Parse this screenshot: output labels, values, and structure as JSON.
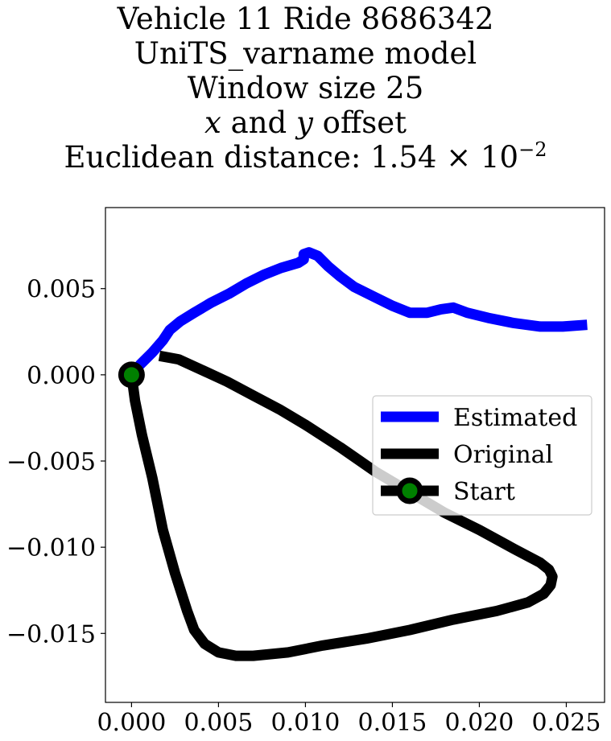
{
  "chart_data": {
    "type": "line",
    "title_lines": {
      "line1": "Vehicle 11 Ride 8686342",
      "line2": "UniTS_varname model",
      "line3": "Window size 25",
      "line4_var1": "x",
      "line4_mid": " and ",
      "line4_var2": "y",
      "line4_end": " offset",
      "line5_prefix": "Euclidean distance: 1.54 × 10",
      "line5_exponent": "−2"
    },
    "xlim": [
      -0.0015,
      0.0272
    ],
    "ylim": [
      -0.019,
      0.0097
    ],
    "x_ticks": [
      {
        "value": 0.0,
        "label": "0.000"
      },
      {
        "value": 0.005,
        "label": "0.005"
      },
      {
        "value": 0.01,
        "label": "0.010"
      },
      {
        "value": 0.015,
        "label": "0.015"
      },
      {
        "value": 0.02,
        "label": "0.020"
      },
      {
        "value": 0.025,
        "label": "0.025"
      }
    ],
    "y_ticks": [
      {
        "value": 0.005,
        "label": "0.005"
      },
      {
        "value": 0.0,
        "label": "0.000"
      },
      {
        "value": -0.005,
        "label": "−0.005"
      },
      {
        "value": -0.01,
        "label": "−0.010"
      },
      {
        "value": -0.015,
        "label": "−0.015"
      }
    ],
    "grid": false,
    "legend_position": "center-right",
    "series": [
      {
        "name": "Estimated",
        "color": "#0000ff",
        "points": [
          [
            0.0,
            0.0
          ],
          [
            0.0005,
            0.0006
          ],
          [
            0.0012,
            0.0013
          ],
          [
            0.0018,
            0.002
          ],
          [
            0.0022,
            0.0026
          ],
          [
            0.0028,
            0.0031
          ],
          [
            0.0036,
            0.0036
          ],
          [
            0.0046,
            0.0042
          ],
          [
            0.0056,
            0.0047
          ],
          [
            0.0066,
            0.0053
          ],
          [
            0.0076,
            0.0058
          ],
          [
            0.0086,
            0.0062
          ],
          [
            0.0096,
            0.0065
          ],
          [
            0.0099,
            0.0067
          ],
          [
            0.0099,
            0.007
          ],
          [
            0.0102,
            0.0071
          ],
          [
            0.0107,
            0.0069
          ],
          [
            0.0113,
            0.0063
          ],
          [
            0.012,
            0.0057
          ],
          [
            0.0128,
            0.0051
          ],
          [
            0.014,
            0.0045
          ],
          [
            0.015,
            0.004
          ],
          [
            0.016,
            0.0036
          ],
          [
            0.017,
            0.0036
          ],
          [
            0.0178,
            0.0038
          ],
          [
            0.0185,
            0.0039
          ],
          [
            0.0193,
            0.0036
          ],
          [
            0.0205,
            0.0033
          ],
          [
            0.022,
            0.003
          ],
          [
            0.0235,
            0.0028
          ],
          [
            0.0248,
            0.0028
          ],
          [
            0.0262,
            0.0029
          ]
        ]
      },
      {
        "name": "Original",
        "color": "#000000",
        "points": [
          [
            0.0016,
            0.0011
          ],
          [
            0.0027,
            0.0009
          ],
          [
            0.004,
            0.0003
          ],
          [
            0.0055,
            -0.0004
          ],
          [
            0.007,
            -0.0012
          ],
          [
            0.0085,
            -0.002
          ],
          [
            0.01,
            -0.0029
          ],
          [
            0.012,
            -0.0042
          ],
          [
            0.014,
            -0.0056
          ],
          [
            0.016,
            -0.0068
          ],
          [
            0.018,
            -0.008
          ],
          [
            0.02,
            -0.009
          ],
          [
            0.022,
            -0.0101
          ],
          [
            0.0235,
            -0.0109
          ],
          [
            0.024,
            -0.0113
          ],
          [
            0.0242,
            -0.0117
          ],
          [
            0.0241,
            -0.0122
          ],
          [
            0.0237,
            -0.0127
          ],
          [
            0.0228,
            -0.0132
          ],
          [
            0.021,
            -0.0137
          ],
          [
            0.0185,
            -0.0142
          ],
          [
            0.016,
            -0.0148
          ],
          [
            0.0135,
            -0.0153
          ],
          [
            0.011,
            -0.0157
          ],
          [
            0.009,
            -0.0161
          ],
          [
            0.007,
            -0.0163
          ],
          [
            0.006,
            -0.0163
          ],
          [
            0.005,
            -0.0161
          ],
          [
            0.0042,
            -0.0156
          ],
          [
            0.0036,
            -0.0148
          ],
          [
            0.0032,
            -0.0137
          ],
          [
            0.0025,
            -0.0115
          ],
          [
            0.0018,
            -0.009
          ],
          [
            0.0012,
            -0.006
          ],
          [
            0.0006,
            -0.0035
          ],
          [
            0.0002,
            -0.0015
          ],
          [
            0.0,
            0.0
          ]
        ]
      }
    ],
    "start_point": {
      "name": "Start",
      "x": 0.0,
      "y": 0.0,
      "outer_color": "#000000",
      "inner_color": "#008000"
    },
    "legend": {
      "items": [
        {
          "label": "Estimated",
          "color": "#0000ff",
          "marker": false
        },
        {
          "label": "Original",
          "color": "#000000",
          "marker": false
        },
        {
          "label": "Start",
          "color": "#000000",
          "marker": true
        }
      ]
    }
  }
}
